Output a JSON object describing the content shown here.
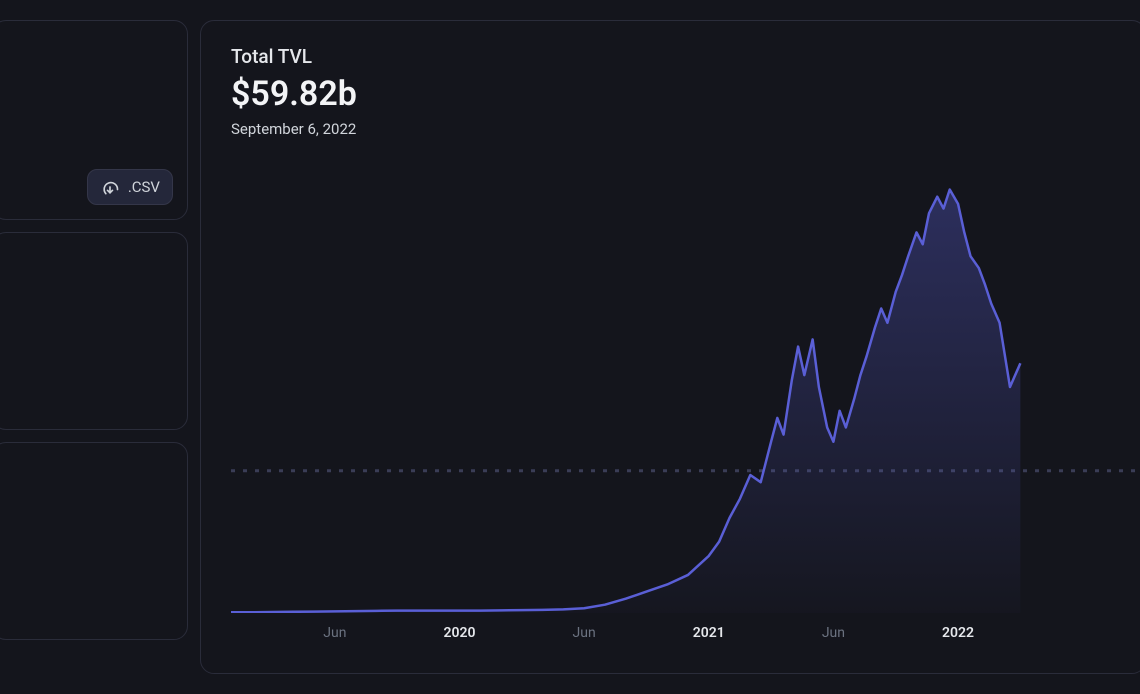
{
  "sidebar": {
    "csv_label": ".CSV"
  },
  "chart": {
    "title": "Total TVL",
    "value": "$59.82b",
    "date": "September 6, 2022",
    "type": "area",
    "line_color": "#5a5fd6",
    "fill_top_color": "rgba(90,95,214,0.35)",
    "fill_bottom_color": "rgba(90,95,214,0.02)",
    "reference_line_color": "#3a3d56",
    "reference_line_y": 59.82,
    "background_color": "#14151c",
    "ylim": [
      0,
      190
    ],
    "xlim": [
      0,
      44
    ],
    "x_ticks": [
      {
        "pos": 5,
        "label": "Jun",
        "bold": false
      },
      {
        "pos": 11,
        "label": "2020",
        "bold": true
      },
      {
        "pos": 17,
        "label": "Jun",
        "bold": false
      },
      {
        "pos": 23,
        "label": "2021",
        "bold": true
      },
      {
        "pos": 29,
        "label": "Jun",
        "bold": false
      },
      {
        "pos": 35,
        "label": "2022",
        "bold": true
      }
    ],
    "series": [
      {
        "x": 0,
        "y": 0.3
      },
      {
        "x": 1,
        "y": 0.3
      },
      {
        "x": 2,
        "y": 0.4
      },
      {
        "x": 3,
        "y": 0.5
      },
      {
        "x": 4,
        "y": 0.6
      },
      {
        "x": 5,
        "y": 0.7
      },
      {
        "x": 6,
        "y": 0.8
      },
      {
        "x": 7,
        "y": 0.9
      },
      {
        "x": 8,
        "y": 1.0
      },
      {
        "x": 9,
        "y": 1.0
      },
      {
        "x": 10,
        "y": 1.0
      },
      {
        "x": 11,
        "y": 1.0
      },
      {
        "x": 12,
        "y": 1.0
      },
      {
        "x": 13,
        "y": 1.1
      },
      {
        "x": 14,
        "y": 1.2
      },
      {
        "x": 15,
        "y": 1.3
      },
      {
        "x": 16,
        "y": 1.5
      },
      {
        "x": 17,
        "y": 2.0
      },
      {
        "x": 18,
        "y": 3.5
      },
      {
        "x": 19,
        "y": 6
      },
      {
        "x": 20,
        "y": 9
      },
      {
        "x": 21,
        "y": 12
      },
      {
        "x": 22,
        "y": 16
      },
      {
        "x": 23,
        "y": 24
      },
      {
        "x": 23.5,
        "y": 30
      },
      {
        "x": 24,
        "y": 40
      },
      {
        "x": 24.5,
        "y": 48
      },
      {
        "x": 25,
        "y": 58
      },
      {
        "x": 25.5,
        "y": 55
      },
      {
        "x": 26,
        "y": 72
      },
      {
        "x": 26.3,
        "y": 82
      },
      {
        "x": 26.6,
        "y": 75
      },
      {
        "x": 27,
        "y": 98
      },
      {
        "x": 27.3,
        "y": 112
      },
      {
        "x": 27.6,
        "y": 100
      },
      {
        "x": 28,
        "y": 115
      },
      {
        "x": 28.3,
        "y": 95
      },
      {
        "x": 28.7,
        "y": 78
      },
      {
        "x": 29,
        "y": 72
      },
      {
        "x": 29.3,
        "y": 85
      },
      {
        "x": 29.6,
        "y": 78
      },
      {
        "x": 30,
        "y": 90
      },
      {
        "x": 30.3,
        "y": 100
      },
      {
        "x": 30.6,
        "y": 108
      },
      {
        "x": 31,
        "y": 120
      },
      {
        "x": 31.3,
        "y": 128
      },
      {
        "x": 31.6,
        "y": 122
      },
      {
        "x": 32,
        "y": 135
      },
      {
        "x": 32.3,
        "y": 142
      },
      {
        "x": 32.6,
        "y": 150
      },
      {
        "x": 33,
        "y": 160
      },
      {
        "x": 33.3,
        "y": 155
      },
      {
        "x": 33.6,
        "y": 168
      },
      {
        "x": 34,
        "y": 175
      },
      {
        "x": 34.3,
        "y": 170
      },
      {
        "x": 34.6,
        "y": 178
      },
      {
        "x": 35,
        "y": 172
      },
      {
        "x": 35.3,
        "y": 160
      },
      {
        "x": 35.6,
        "y": 150
      },
      {
        "x": 36,
        "y": 145
      },
      {
        "x": 36.3,
        "y": 138
      },
      {
        "x": 36.6,
        "y": 130
      },
      {
        "x": 37,
        "y": 122
      },
      {
        "x": 37.5,
        "y": 95
      },
      {
        "x": 38,
        "y": 105
      }
    ]
  }
}
